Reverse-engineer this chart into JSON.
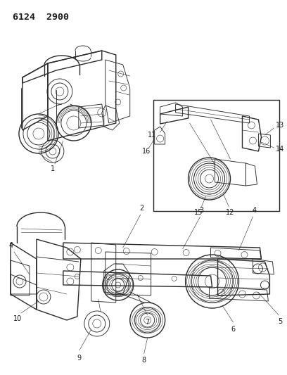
{
  "title_code": "6124  2900",
  "background_color": "#ffffff",
  "line_color": "#2a2a2a",
  "text_color": "#1a1a1a",
  "fig_width": 4.08,
  "fig_height": 5.33,
  "dpi": 100,
  "header_fontsize": 9.5,
  "label_fontsize": 7.0,
  "label_fontsize_small": 6.5
}
